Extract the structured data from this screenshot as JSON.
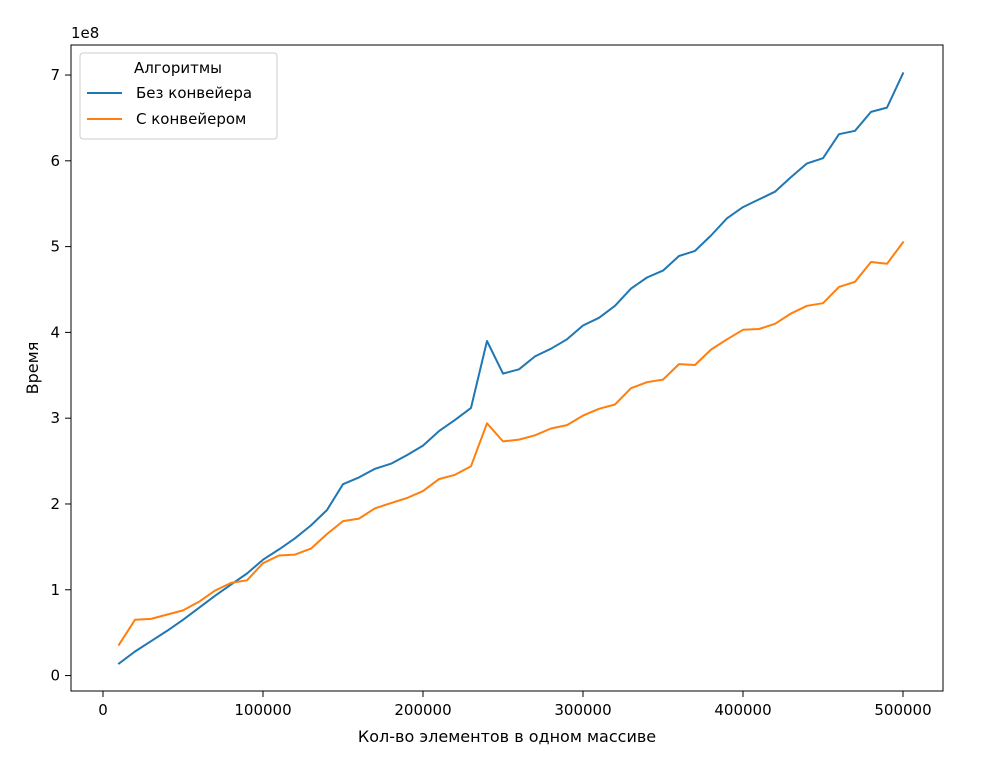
{
  "chart_data": {
    "type": "line",
    "xlabel": "Кол-во элементов в одном массиве",
    "ylabel": "Время",
    "y_offset_label": "1e8",
    "xlim": [
      -20000,
      525000
    ],
    "ylim": [
      -0.18,
      7.35
    ],
    "x_ticks": [
      0,
      100000,
      200000,
      300000,
      400000,
      500000
    ],
    "x_tick_labels": [
      "0",
      "100000",
      "200000",
      "300000",
      "400000",
      "500000"
    ],
    "y_ticks": [
      0,
      1,
      2,
      3,
      4,
      5,
      6,
      7
    ],
    "y_tick_labels": [
      "0",
      "1",
      "2",
      "3",
      "4",
      "5",
      "6",
      "7"
    ],
    "grid": false,
    "legend": {
      "title": "Алгоритмы",
      "placement": "top-left"
    },
    "x": [
      10000,
      20000,
      30000,
      40000,
      50000,
      60000,
      70000,
      80000,
      90000,
      100000,
      110000,
      120000,
      130000,
      140000,
      150000,
      160000,
      170000,
      180000,
      190000,
      200000,
      210000,
      220000,
      230000,
      240000,
      250000,
      260000,
      270000,
      280000,
      290000,
      300000,
      310000,
      320000,
      330000,
      340000,
      350000,
      360000,
      370000,
      380000,
      390000,
      400000,
      410000,
      420000,
      430000,
      440000,
      450000,
      460000,
      470000,
      480000,
      490000,
      500000
    ],
    "series": [
      {
        "name": "Без конвейера",
        "color": "#1f77b4",
        "values": [
          0.14,
          0.28,
          0.4,
          0.52,
          0.65,
          0.79,
          0.93,
          1.06,
          1.19,
          1.35,
          1.47,
          1.6,
          1.75,
          1.93,
          2.23,
          2.31,
          2.41,
          2.47,
          2.57,
          2.68,
          2.85,
          2.98,
          3.12,
          3.9,
          3.52,
          3.57,
          3.72,
          3.81,
          3.92,
          4.08,
          4.17,
          4.31,
          4.51,
          4.64,
          4.72,
          4.89,
          4.95,
          5.13,
          5.33,
          5.46,
          5.55,
          5.64,
          5.81,
          5.97,
          6.03,
          6.31,
          6.35,
          6.57,
          6.62,
          7.02
        ]
      },
      {
        "name": "С конвейером",
        "color": "#ff7f0e",
        "values": [
          0.36,
          0.65,
          0.66,
          0.71,
          0.76,
          0.86,
          0.99,
          1.08,
          1.11,
          1.31,
          1.4,
          1.41,
          1.48,
          1.65,
          1.8,
          1.83,
          1.95,
          2.01,
          2.07,
          2.15,
          2.29,
          2.34,
          2.44,
          2.94,
          2.73,
          2.75,
          2.8,
          2.88,
          2.92,
          3.03,
          3.11,
          3.16,
          3.35,
          3.42,
          3.45,
          3.63,
          3.62,
          3.8,
          3.92,
          4.03,
          4.04,
          4.1,
          4.22,
          4.31,
          4.34,
          4.53,
          4.59,
          4.82,
          4.8,
          5.05
        ]
      }
    ]
  }
}
